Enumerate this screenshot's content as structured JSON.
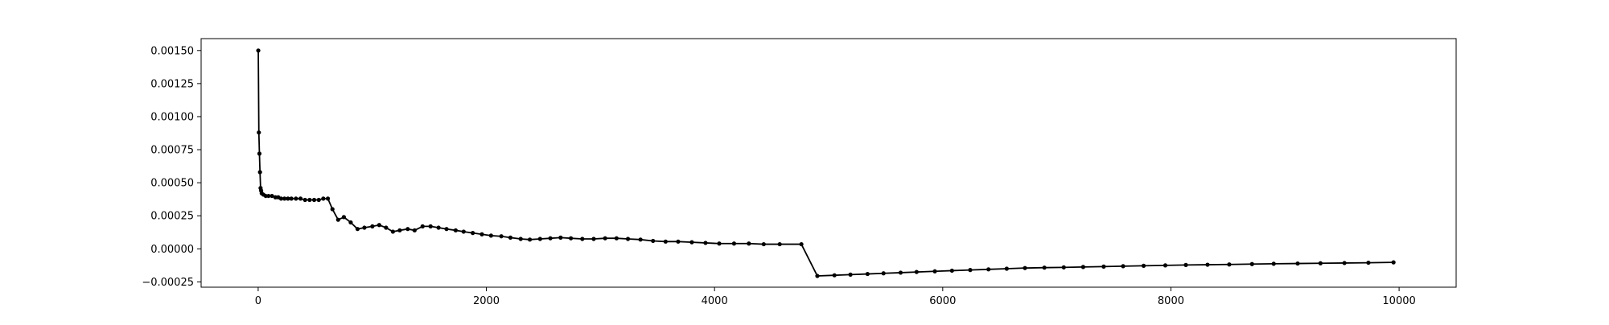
{
  "chart_data": {
    "type": "line",
    "title": "",
    "xlabel": "",
    "ylabel": "",
    "xlim": [
      -500,
      10500
    ],
    "ylim": [
      -0.00029,
      0.00159
    ],
    "grid": false,
    "xticks": [
      0,
      2000,
      4000,
      6000,
      8000,
      10000
    ],
    "xtick_labels": [
      "0",
      "2000",
      "4000",
      "6000",
      "8000",
      "10000"
    ],
    "yticks": [
      0.0015,
      0.00125,
      0.001,
      0.00075,
      0.0005,
      0.00025,
      0.0,
      -0.00025
    ],
    "ytick_labels": [
      "0.00150",
      "0.00125",
      "0.00100",
      "0.00075",
      "0.00050",
      "0.00025",
      "0.00000",
      "−0.00025"
    ],
    "series": [
      {
        "color": "#000000",
        "marker": "dot",
        "x": [
          1,
          6,
          11,
          16,
          21,
          26,
          31,
          46,
          66,
          91,
          121,
          151,
          176,
          201,
          231,
          261,
          291,
          331,
          371,
          411,
          451,
          491,
          531,
          571,
          611,
          651,
          701,
          751,
          811,
          871,
          931,
          1001,
          1061,
          1121,
          1181,
          1241,
          1311,
          1371,
          1441,
          1511,
          1581,
          1651,
          1731,
          1801,
          1881,
          1961,
          2041,
          2131,
          2211,
          2301,
          2381,
          2471,
          2561,
          2651,
          2741,
          2841,
          2941,
          3041,
          3141,
          3241,
          3351,
          3461,
          3571,
          3681,
          3801,
          3921,
          4041,
          4171,
          4301,
          4431,
          4571,
          4761,
          4901,
          5051,
          5191,
          5341,
          5481,
          5631,
          5771,
          5931,
          6081,
          6241,
          6401,
          6561,
          6721,
          6891,
          7061,
          7231,
          7411,
          7581,
          7761,
          7951,
          8131,
          8321,
          8511,
          8711,
          8901,
          9111,
          9311,
          9521,
          9731,
          9951
        ],
        "y": [
          0.0015,
          0.00088,
          0.00072,
          0.00058,
          0.00046,
          0.00044,
          0.00042,
          0.00041,
          0.0004,
          0.0004,
          0.0004,
          0.00039,
          0.00039,
          0.00038,
          0.00038,
          0.00038,
          0.00038,
          0.00038,
          0.00038,
          0.00037,
          0.00037,
          0.00037,
          0.00037,
          0.00038,
          0.00038,
          0.0003,
          0.00022,
          0.00024,
          0.0002,
          0.00015,
          0.00016,
          0.00017,
          0.00018,
          0.00016,
          0.00013,
          0.00014,
          0.00015,
          0.00014,
          0.00017,
          0.00017,
          0.00016,
          0.00015,
          0.00014,
          0.00013,
          0.00012,
          0.00011,
          0.0001,
          9.5e-05,
          8.5e-05,
          7.5e-05,
          7e-05,
          7.5e-05,
          8e-05,
          8.5e-05,
          8e-05,
          7.5e-05,
          7.5e-05,
          8e-05,
          8e-05,
          7.5e-05,
          7e-05,
          6e-05,
          5.5e-05,
          5.5e-05,
          5e-05,
          4.5e-05,
          4e-05,
          4e-05,
          4e-05,
          3.5e-05,
          3.5e-05,
          3.5e-05,
          -0.000205,
          -0.0002,
          -0.000195,
          -0.00019,
          -0.000185,
          -0.00018,
          -0.000175,
          -0.00017,
          -0.000165,
          -0.00016,
          -0.000155,
          -0.00015,
          -0.000145,
          -0.000142,
          -0.00014,
          -0.000137,
          -0.000134,
          -0.000131,
          -0.000128,
          -0.000125,
          -0.000122,
          -0.00012,
          -0.000118,
          -0.000115,
          -0.000113,
          -0.000111,
          -0.000109,
          -0.000107,
          -0.000105,
          -0.000102
        ]
      }
    ]
  }
}
